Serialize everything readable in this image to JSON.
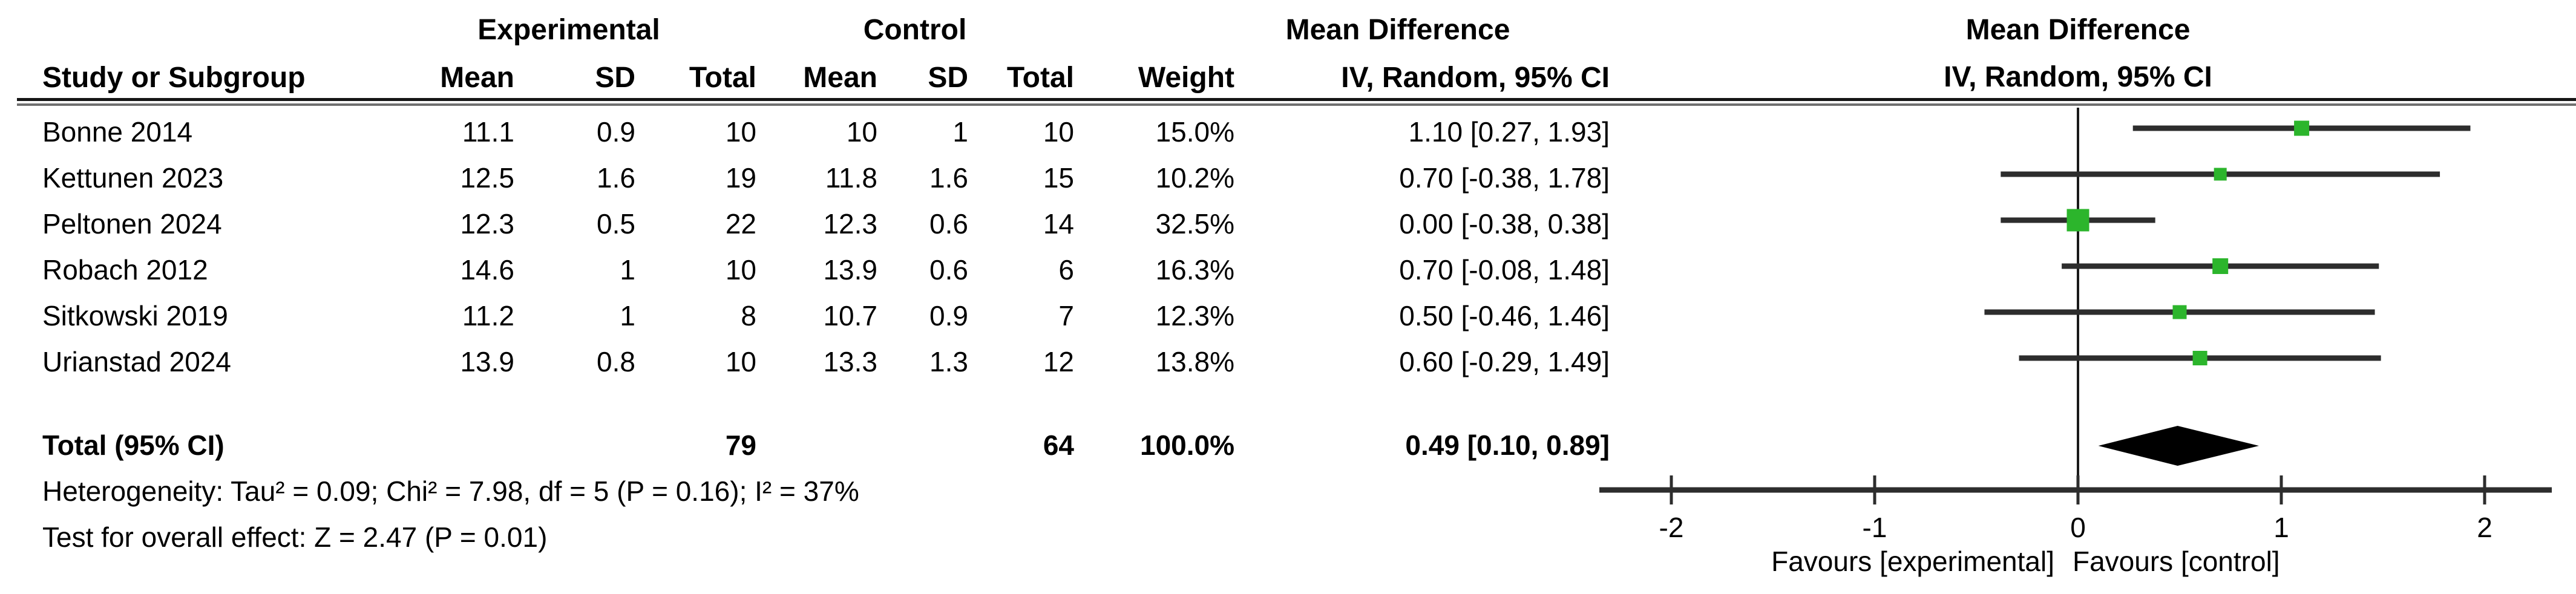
{
  "table": {
    "group_headers": {
      "experimental": "Experimental",
      "control": "Control",
      "effect": "Mean Difference"
    },
    "column_headers": {
      "study": "Study or Subgroup",
      "mean": "Mean",
      "sd": "SD",
      "total": "Total",
      "weight": "Weight",
      "ci": "IV, Random, 95% CI"
    },
    "studies": [
      {
        "name": "Bonne 2014",
        "exp_mean": "11.1",
        "exp_sd": "0.9",
        "exp_total": "10",
        "ctl_mean": "10",
        "ctl_sd": "1",
        "ctl_total": "10",
        "weight": "15.0%",
        "ci": "1.10 [0.27, 1.93]",
        "md": 1.1,
        "lo": 0.27,
        "hi": 1.93,
        "weight_pct": 15.0
      },
      {
        "name": "Kettunen 2023",
        "exp_mean": "12.5",
        "exp_sd": "1.6",
        "exp_total": "19",
        "ctl_mean": "11.8",
        "ctl_sd": "1.6",
        "ctl_total": "15",
        "weight": "10.2%",
        "ci": "0.70 [-0.38, 1.78]",
        "md": 0.7,
        "lo": -0.38,
        "hi": 1.78,
        "weight_pct": 10.2
      },
      {
        "name": "Peltonen 2024",
        "exp_mean": "12.3",
        "exp_sd": "0.5",
        "exp_total": "22",
        "ctl_mean": "12.3",
        "ctl_sd": "0.6",
        "ctl_total": "14",
        "weight": "32.5%",
        "ci": "0.00 [-0.38, 0.38]",
        "md": 0.0,
        "lo": -0.38,
        "hi": 0.38,
        "weight_pct": 32.5
      },
      {
        "name": "Robach 2012",
        "exp_mean": "14.6",
        "exp_sd": "1",
        "exp_total": "10",
        "ctl_mean": "13.9",
        "ctl_sd": "0.6",
        "ctl_total": "6",
        "weight": "16.3%",
        "ci": "0.70 [-0.08, 1.48]",
        "md": 0.7,
        "lo": -0.08,
        "hi": 1.48,
        "weight_pct": 16.3
      },
      {
        "name": "Sitkowski 2019",
        "exp_mean": "11.2",
        "exp_sd": "1",
        "exp_total": "8",
        "ctl_mean": "10.7",
        "ctl_sd": "0.9",
        "ctl_total": "7",
        "weight": "12.3%",
        "ci": "0.50 [-0.46, 1.46]",
        "md": 0.5,
        "lo": -0.46,
        "hi": 1.46,
        "weight_pct": 12.3
      },
      {
        "name": "Urianstad 2024",
        "exp_mean": "13.9",
        "exp_sd": "0.8",
        "exp_total": "10",
        "ctl_mean": "13.3",
        "ctl_sd": "1.3",
        "ctl_total": "12",
        "weight": "13.8%",
        "ci": "0.60 [-0.29, 1.49]",
        "md": 0.6,
        "lo": -0.29,
        "hi": 1.49,
        "weight_pct": 13.8
      }
    ],
    "total_row": {
      "label": "Total (95% CI)",
      "exp_total": "79",
      "ctl_total": "64",
      "weight": "100.0%",
      "ci": "0.49 [0.10, 0.89]",
      "md": 0.49,
      "lo": 0.1,
      "hi": 0.89
    },
    "heterogeneity": "Heterogeneity: Tau² = 0.09; Chi² = 7.98, df = 5 (P = 0.16); I² = 37%",
    "overall_effect": "Test for overall effect: Z = 2.47 (P = 0.01)"
  },
  "plot": {
    "header_line1": "Mean Difference",
    "header_line2": "IV, Random, 95% CI",
    "axis_ticks": [
      {
        "v": -2,
        "label": "-2"
      },
      {
        "v": -1,
        "label": "-1"
      },
      {
        "v": 0,
        "label": "0"
      },
      {
        "v": 1,
        "label": "1"
      },
      {
        "v": 2,
        "label": "2"
      }
    ],
    "favours_left": "Favours [experimental]",
    "favours_right": "Favours [control]",
    "marker_color": "#2cb52c",
    "line_color": "#2d2d2d",
    "diamond_color": "#000000"
  },
  "chart_data": {
    "type": "scatter",
    "subtype": "forest-plot",
    "title": "Mean Difference, IV, Random, 95% CI",
    "xlim": [
      -2.36,
      2.33
    ],
    "xticks": [
      -2,
      -1,
      0,
      1,
      2
    ],
    "xlabel_left": "Favours [experimental]",
    "xlabel_right": "Favours [control]",
    "grid": false,
    "studies": [
      {
        "label": "Bonne 2014",
        "md": 1.1,
        "ci_low": 0.27,
        "ci_high": 1.93,
        "weight_pct": 15.0
      },
      {
        "label": "Kettunen 2023",
        "md": 0.7,
        "ci_low": -0.38,
        "ci_high": 1.78,
        "weight_pct": 10.2
      },
      {
        "label": "Peltonen 2024",
        "md": 0.0,
        "ci_low": -0.38,
        "ci_high": 0.38,
        "weight_pct": 32.5
      },
      {
        "label": "Robach 2012",
        "md": 0.7,
        "ci_low": -0.08,
        "ci_high": 1.48,
        "weight_pct": 16.3
      },
      {
        "label": "Sitkowski 2019",
        "md": 0.5,
        "ci_low": -0.46,
        "ci_high": 1.46,
        "weight_pct": 12.3
      },
      {
        "label": "Urianstad 2024",
        "md": 0.6,
        "ci_low": -0.29,
        "ci_high": 1.49,
        "weight_pct": 13.8
      }
    ],
    "total": {
      "label": "Total (95% CI)",
      "md": 0.49,
      "ci_low": 0.1,
      "ci_high": 0.89,
      "weight_pct": 100.0
    },
    "heterogeneity": {
      "tau2": 0.09,
      "chi2": 7.98,
      "df": 5,
      "p": 0.16,
      "i2_pct": 37
    },
    "overall_effect": {
      "z": 2.47,
      "p": 0.01
    }
  }
}
